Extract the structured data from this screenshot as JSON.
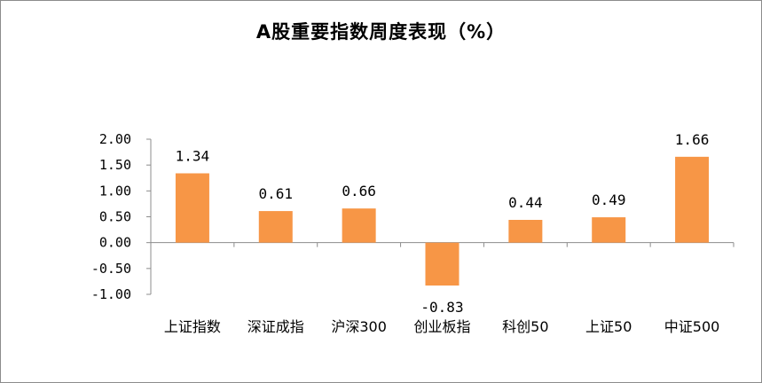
{
  "chart_data": {
    "type": "bar",
    "title": "A股重要指数周度表现（%）",
    "categories": [
      "上证指数",
      "深证成指",
      "沪深300",
      "创业板指",
      "科创50",
      "上证50",
      "中证500"
    ],
    "values": [
      1.34,
      0.61,
      0.66,
      -0.83,
      0.44,
      0.49,
      1.66
    ],
    "data_labels": [
      "1.34",
      "0.61",
      "0.66",
      "-0.83",
      "0.44",
      "0.49",
      "1.66"
    ],
    "y_ticks": [
      "2.00",
      "1.50",
      "1.00",
      "0.50",
      "0.00",
      "-0.50",
      "-1.00"
    ],
    "ylim": [
      -1.0,
      2.0
    ],
    "grid": false,
    "legend": "none",
    "bar_color": "#F79646"
  }
}
